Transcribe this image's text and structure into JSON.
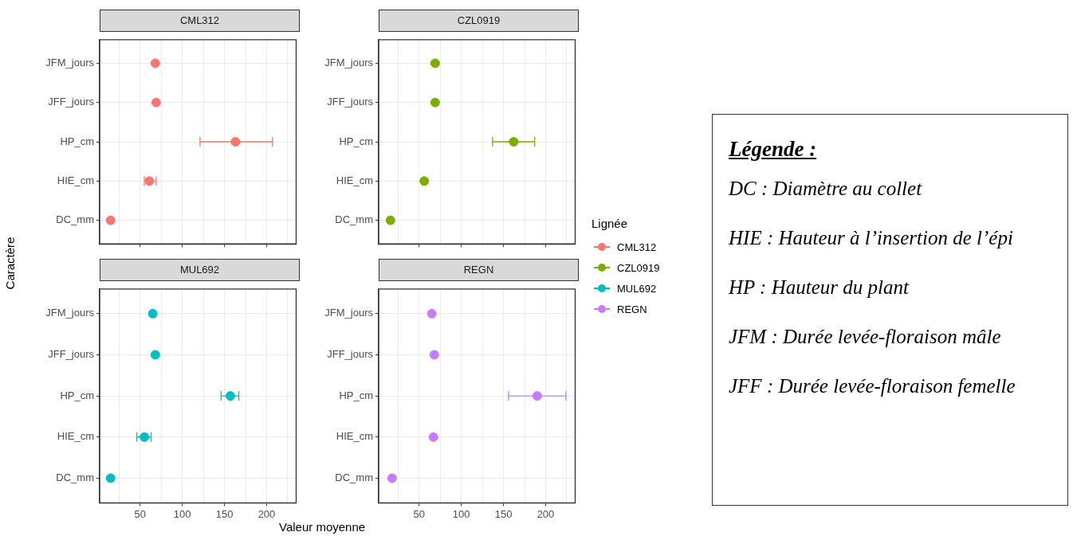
{
  "chart_data": [
    {
      "type": "scatter",
      "title": "CML312",
      "orientation": "horizontal",
      "ylabel": "Caractère",
      "xlabel": "Valeur moyenne",
      "legend": "right",
      "legend_title": "Lignée",
      "marker": "circle",
      "grid": true,
      "tick_labels": "y",
      "categories": [
        "JFM_jours",
        "JFF_jours",
        "HP_cm",
        "HIE_cm",
        "DC_mm"
      ],
      "series": [
        {
          "name": "CML312",
          "color": "#f8766d",
          "values": [
            68,
            69,
            163,
            61,
            15
          ],
          "errors": [
            null,
            null,
            [
              121,
              207
            ],
            [
              55,
              69
            ],
            null
          ]
        }
      ],
      "xlim": [
        2,
        235
      ],
      "xticks": [
        {
          "value": 25,
          "label": null
        },
        50,
        {
          "value": 75,
          "label": null
        },
        100,
        {
          "value": 125,
          "label": null
        },
        150,
        {
          "value": 175,
          "label": null
        },
        200,
        {
          "value": 225,
          "label": null
        }
      ]
    },
    {
      "type": "scatter",
      "title": "CZL0919",
      "orientation": "horizontal",
      "legend": "right",
      "marker": "circle",
      "grid": true,
      "tick_labels": "y",
      "categories": [
        "JFM_jours",
        "JFF_jours",
        "HP_cm",
        "HIE_cm",
        "DC_mm"
      ],
      "series": [
        {
          "name": "CZL0919",
          "color": "#7cae00",
          "values": [
            69,
            69,
            162,
            56,
            16
          ],
          "errors": [
            null,
            null,
            [
              137,
              187
            ],
            null,
            null
          ]
        }
      ],
      "xlim": [
        2,
        235
      ],
      "xticks": [
        {
          "value": 25,
          "label": null
        },
        50,
        {
          "value": 75,
          "label": null
        },
        100,
        {
          "value": 125,
          "label": null
        },
        150,
        {
          "value": 175,
          "label": null
        },
        200,
        {
          "value": 225,
          "label": null
        }
      ]
    },
    {
      "type": "scatter",
      "title": "MUL692",
      "orientation": "horizontal",
      "legend": "right",
      "marker": "circle",
      "grid": true,
      "categories": [
        "JFM_jours",
        "JFF_jours",
        "HP_cm",
        "HIE_cm",
        "DC_mm"
      ],
      "series": [
        {
          "name": "MUL692",
          "color": "#00bfc4",
          "values": [
            65,
            68,
            157,
            55,
            15
          ],
          "errors": [
            null,
            null,
            [
              146,
              167
            ],
            [
              46,
              63
            ],
            null
          ]
        }
      ],
      "xlim": [
        2,
        235
      ],
      "xticks": [
        {
          "value": 25,
          "label": null
        },
        50,
        {
          "value": 75,
          "label": null
        },
        100,
        {
          "value": 125,
          "label": null
        },
        150,
        {
          "value": 175,
          "label": null
        },
        200,
        {
          "value": 225,
          "label": null
        }
      ]
    },
    {
      "type": "scatter",
      "title": "REGN",
      "orientation": "horizontal",
      "legend": "right",
      "marker": "circle",
      "grid": true,
      "categories": [
        "JFM_jours",
        "JFF_jours",
        "HP_cm",
        "HIE_cm",
        "DC_mm"
      ],
      "series": [
        {
          "name": "REGN",
          "color": "#c77cff",
          "values": [
            65,
            68,
            190,
            67,
            18
          ],
          "errors": [
            null,
            null,
            [
              156,
              224
            ],
            null,
            null
          ]
        }
      ],
      "xlim": [
        2,
        235
      ],
      "xticks": [
        {
          "value": 25,
          "label": null
        },
        50,
        {
          "value": 75,
          "label": null
        },
        100,
        {
          "value": 125,
          "label": null
        },
        150,
        {
          "value": 175,
          "label": null
        },
        200,
        {
          "value": 225,
          "label": null
        }
      ]
    },
    {
      "type": "other",
      "title": "Légende :",
      "annotations": [
        "DC : Diamètre au collet",
        "HIE : Hauteur à l’insertion de l’épi",
        "HP : Hauteur du plant",
        "JFM : Durée levée-floraison mâle",
        "JFF : Durée levée-floraison femelle"
      ]
    }
  ]
}
